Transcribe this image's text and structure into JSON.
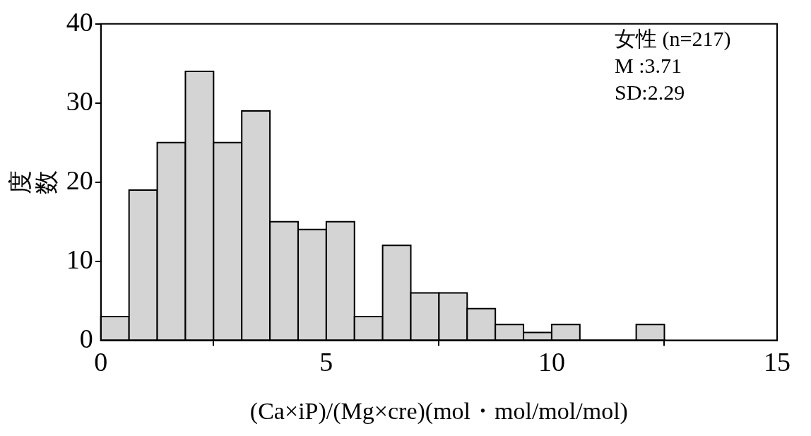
{
  "chart_data": {
    "type": "histogram",
    "xlabel": "(Ca×iP)/(Mg×cre)(mol・mol/mol/mol)",
    "ylabel": "度数",
    "bins": [
      0,
      0.625,
      1.25,
      1.875,
      2.5,
      3.125,
      3.75,
      4.375,
      5,
      5.625,
      6.25,
      6.875,
      7.5,
      8.125,
      8.75,
      9.375,
      10,
      10.625,
      11.25,
      11.875,
      12.5
    ],
    "values": [
      3,
      19,
      25,
      34,
      25,
      29,
      15,
      14,
      15,
      3,
      12,
      6,
      6,
      4,
      2,
      1,
      2,
      0,
      0,
      2
    ],
    "color": "#d4d4d4",
    "xlim": [
      0,
      15
    ],
    "xticks": [
      0,
      5,
      10,
      15
    ],
    "ylim": [
      0,
      40
    ],
    "yticks": [
      0,
      10,
      20,
      30,
      40
    ],
    "grid": false,
    "annotations": [
      "女性 (n=217)",
      "M :3.71",
      "SD:2.29"
    ]
  }
}
